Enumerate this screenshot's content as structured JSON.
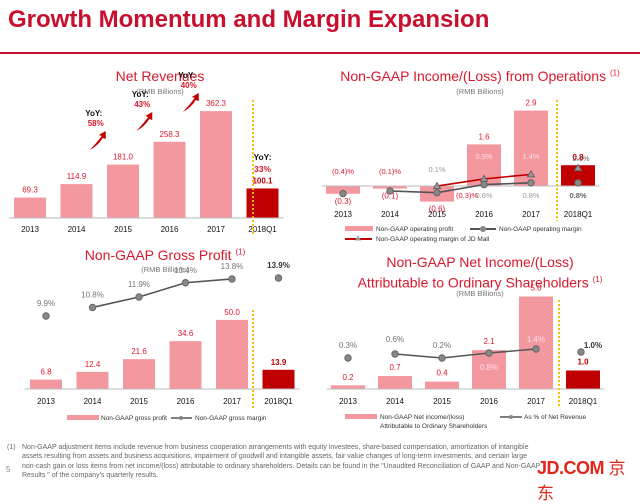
{
  "page": {
    "title": "Growth Momentum and Margin Expansion",
    "page_number": "5",
    "logo_text": "JD.COM",
    "logo_cn": "京东",
    "footnote_marker": "(1)",
    "footnote": "Non-GAAP adjustment items include revenue from business cooperation arrangements with equity investees, share-based compensation, amortization of intangible assets resulting from assets and business acquisitions, impairment of goodwill and intangible assets, fair value changes of long-term investments, and certain large non-cash gain or loss items from net income/(loss) attributable to ordinary shareholders. Details can be found in the \"Unaudited Reconciliation of GAAP and Non-GAAP Results \" of the company's quarterly results.",
    "colors": {
      "accent": "#c8102e",
      "bar_light": "#f4989f",
      "bar_dark": "#c00000",
      "line_gray": "#555555",
      "line_red": "#c00000",
      "divider": "#ffc000"
    }
  },
  "chart_data": [
    {
      "id": "net_revenues",
      "type": "bar",
      "title": "Net Revenues",
      "unit": "(RMB Billions)",
      "categories": [
        "2013",
        "2014",
        "2015",
        "2016",
        "2017",
        "2018Q1"
      ],
      "series": [
        {
          "name": "Net Revenues",
          "values": [
            69.3,
            114.9,
            181.0,
            258.3,
            362.3,
            100.1
          ],
          "labels": [
            "69.3",
            "114.9",
            "181.0",
            "258.3",
            "362.3",
            "100.1"
          ]
        }
      ],
      "yoy": [
        {
          "between": [
            "2014",
            "2015"
          ],
          "label": "YoY:",
          "value": "58%"
        },
        {
          "between": [
            "2015",
            "2016"
          ],
          "label": "YoY:",
          "value": "43%"
        },
        {
          "between": [
            "2016",
            "2017"
          ],
          "label": "YoY:",
          "value": "40%"
        },
        {
          "at": "2018Q1",
          "label": "YoY:",
          "value": "33%"
        }
      ],
      "ylim": [
        0,
        400
      ]
    },
    {
      "id": "op_income",
      "type": "bar",
      "title": "Non-GAAP Income/(Loss) from Operations",
      "title_sup": "(1)",
      "unit": "(RMB Billions)",
      "categories": [
        "2013",
        "2014",
        "2015",
        "2016",
        "2017",
        "2018Q1"
      ],
      "series": [
        {
          "name": "Non-GAAP operating profit",
          "kind": "bar",
          "values": [
            -0.3,
            -0.1,
            -0.6,
            1.6,
            2.9,
            0.8
          ],
          "labels": [
            "(0.3)",
            "(0.1)",
            "(0.6)",
            "1.6",
            "2.9",
            "0.8"
          ]
        },
        {
          "name": "Non-GAAP operating margin",
          "kind": "line",
          "values": [
            -0.4,
            -0.1,
            -0.3,
            0.6,
            0.8,
            0.8
          ],
          "labels": [
            "(0.4)%",
            "(0.1)%",
            "(0.3)%",
            "0.6%",
            "0.8%",
            "0.8%"
          ]
        },
        {
          "name": "Non-GAAP operating margin of JD Mall",
          "kind": "line",
          "values": [
            null,
            null,
            0.1,
            0.9,
            1.4,
            2.1
          ],
          "labels": [
            "",
            "",
            "0.1%",
            "0.9%",
            "1.4%",
            "2.1%"
          ]
        }
      ],
      "ylim": [
        -1,
        3.2
      ]
    },
    {
      "id": "gross_profit",
      "type": "bar",
      "title": "Non-GAAP Gross Profit",
      "title_sup": "(1)",
      "unit": "(RMB Billions)",
      "categories": [
        "2013",
        "2014",
        "2015",
        "2016",
        "2017",
        "2018Q1"
      ],
      "series": [
        {
          "name": "Non-GAAP gross profit",
          "kind": "bar",
          "values": [
            6.8,
            12.4,
            21.6,
            34.6,
            50.0,
            13.9
          ],
          "labels": [
            "6.8",
            "12.4",
            "21.6",
            "34.6",
            "50.0",
            "13.9"
          ]
        },
        {
          "name": "Non-GAAP gross margin",
          "kind": "line",
          "values": [
            9.9,
            10.8,
            11.9,
            13.4,
            13.8,
            13.9
          ],
          "labels": [
            "9.9%",
            "10.8%",
            "11.9%",
            "13.4%",
            "13.8%",
            "13.9%"
          ]
        }
      ],
      "ylim": [
        0,
        60
      ]
    },
    {
      "id": "net_income",
      "type": "bar",
      "title": "Non-GAAP Net Income/(Loss)",
      "title_line2": "Attributable to Ordinary Shareholders",
      "title_sup": "(1)",
      "unit": "(RMB Billions)",
      "categories": [
        "2013",
        "2014",
        "2015",
        "2016",
        "2017",
        "2018Q1"
      ],
      "series": [
        {
          "name": "Non-GAAP Net income/(loss)",
          "name_line2": "Attributable to Ordinary Shareholders",
          "kind": "bar",
          "values": [
            0.2,
            0.7,
            0.4,
            2.1,
            5.0,
            1.0
          ],
          "labels": [
            "0.2",
            "0.7",
            "0.4",
            "2.1",
            "5.0",
            "1.0"
          ]
        },
        {
          "name": "As % of Net Revenue",
          "kind": "line",
          "values": [
            0.3,
            0.6,
            0.2,
            0.8,
            1.4,
            1.0
          ],
          "labels": [
            "0.3%",
            "0.6%",
            "0.2%",
            "0.8%",
            "1.4%",
            "1.0%"
          ]
        }
      ],
      "ylim": [
        0,
        5.5
      ]
    }
  ]
}
